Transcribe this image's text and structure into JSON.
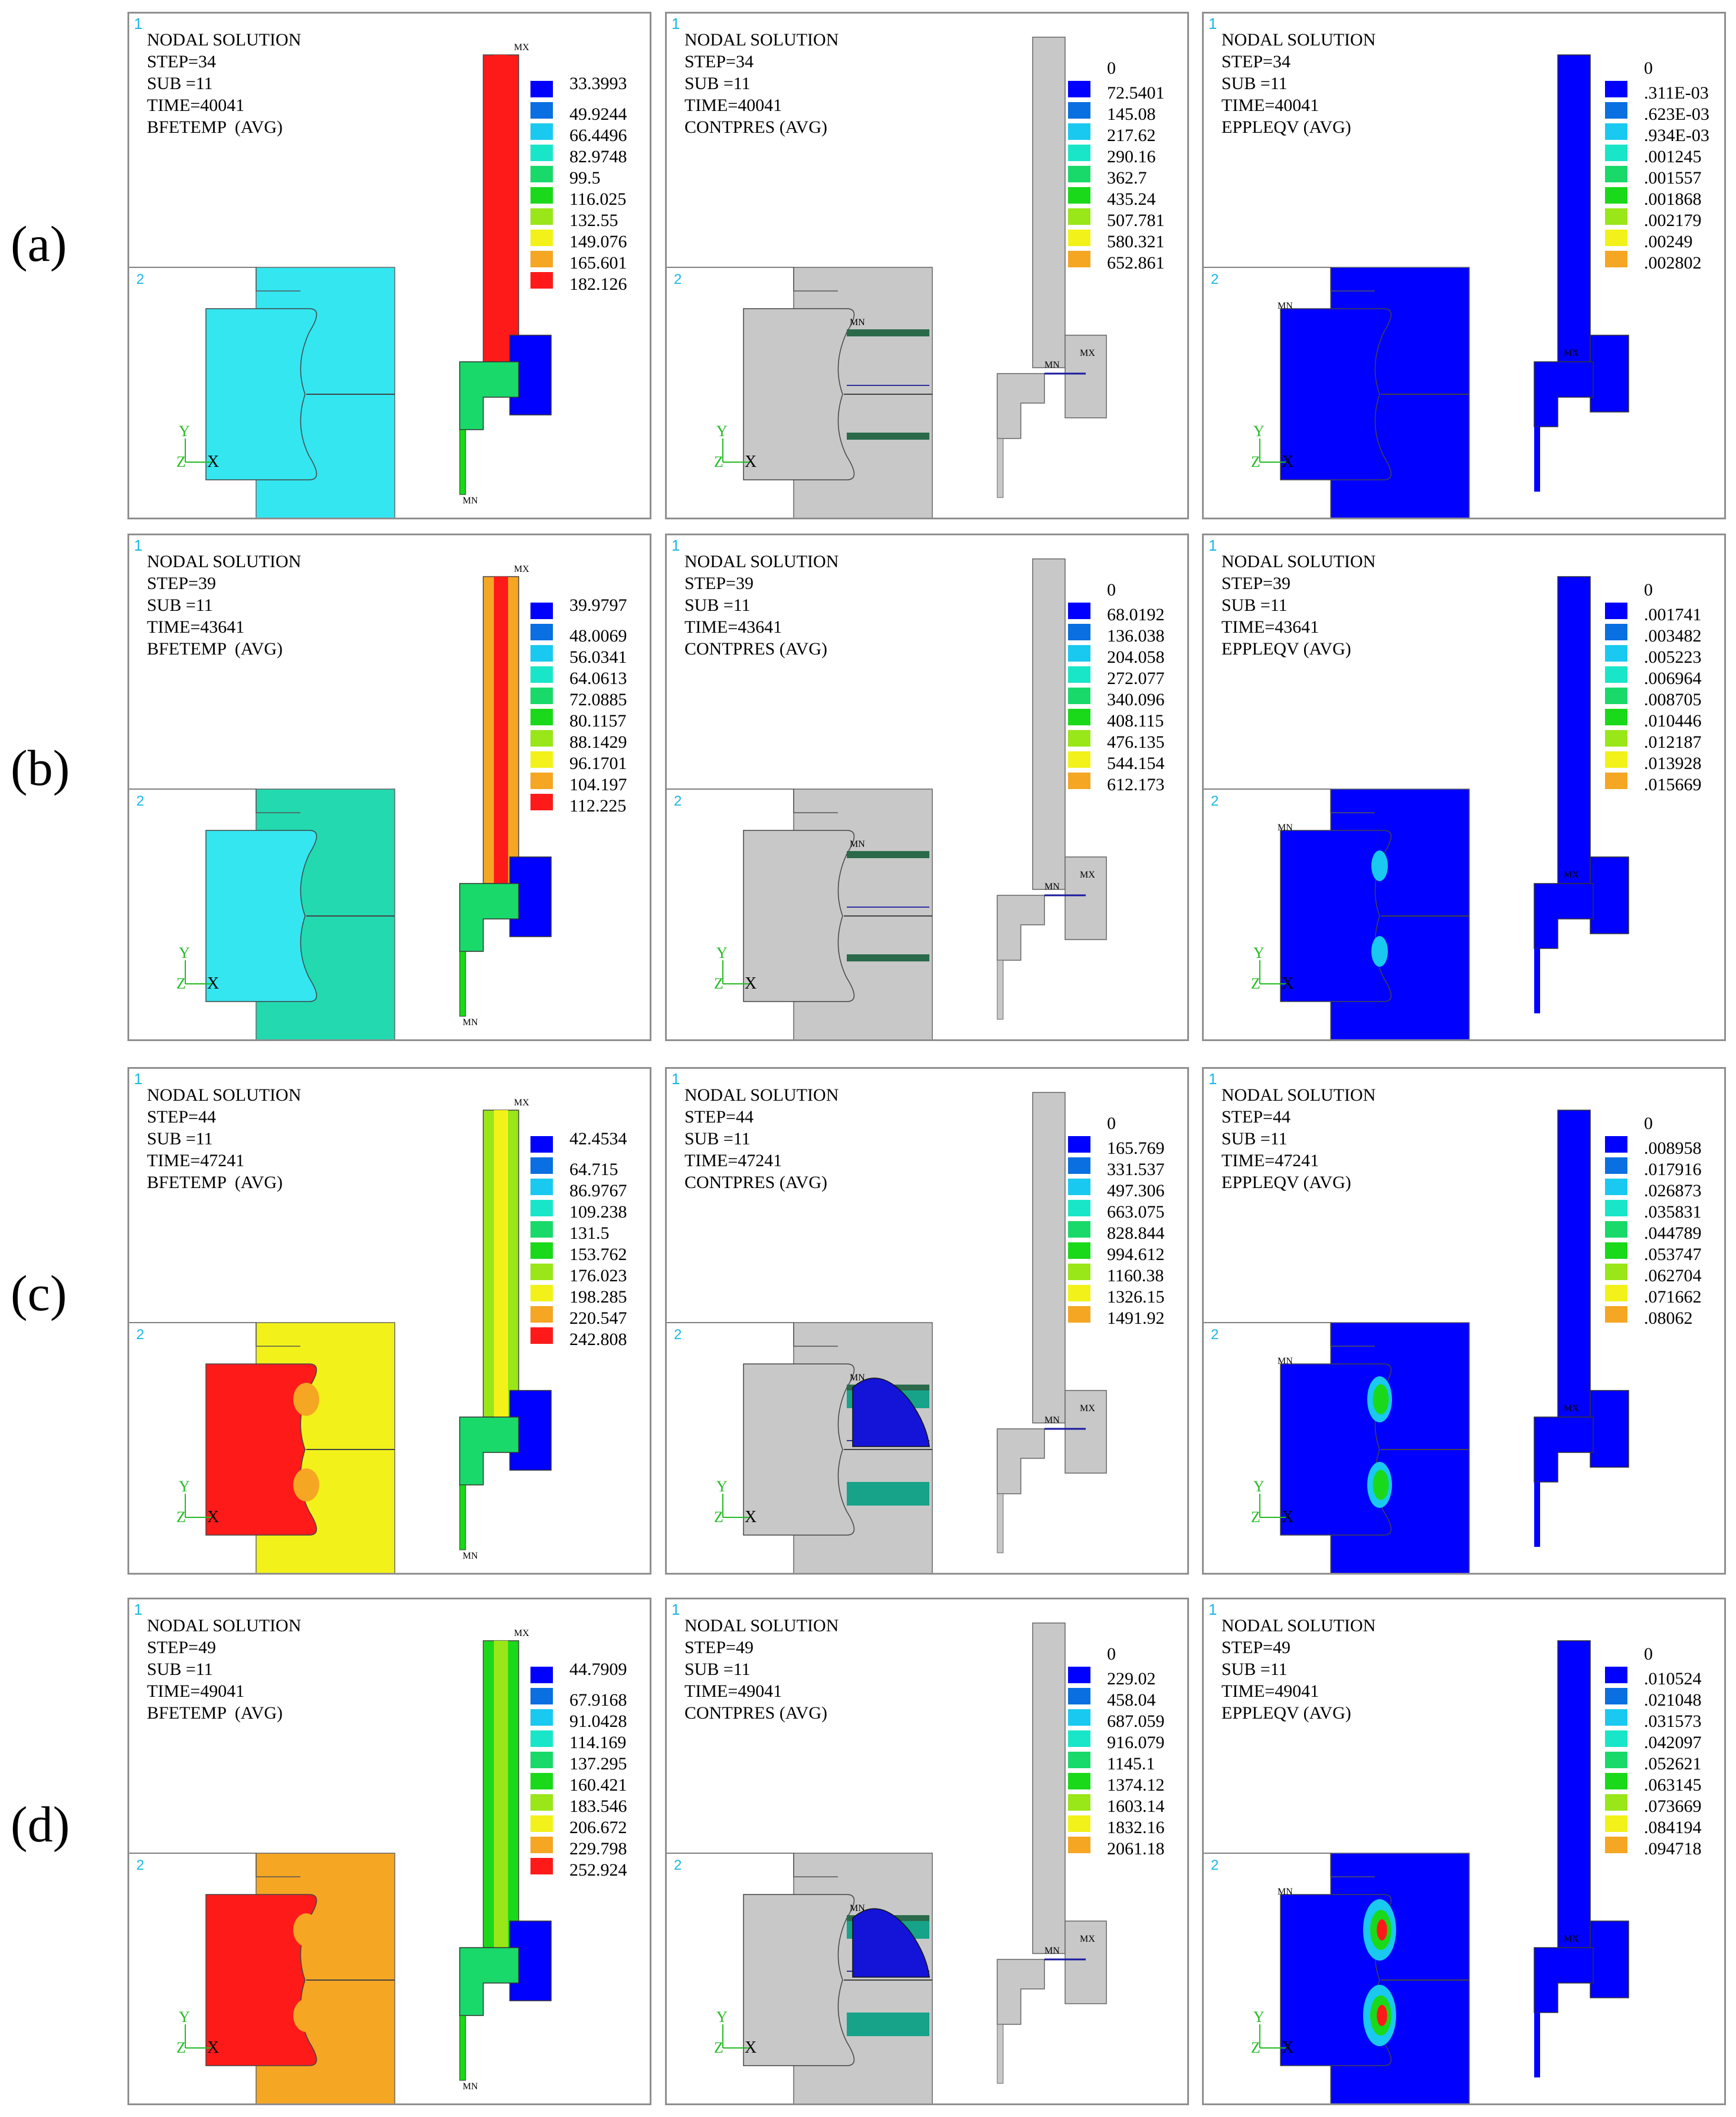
{
  "rows": [
    {
      "label": "(a)",
      "panels": [
        {
          "kind": "temp",
          "title": "NODAL SOLUTION",
          "step": "STEP=34",
          "sub": "SUB =11",
          "time": "TIME=40041",
          "quantity": "BFETEMP  (AVG)",
          "legend": [
            "33.3993",
            "49.9244",
            "66.4496",
            "82.9748",
            "99.5",
            "116.025",
            "132.55",
            "149.076",
            "165.601",
            "182.126"
          ],
          "zero": "",
          "body_color": "#33e6f0",
          "right_color": "#33e6f0",
          "stem_level": 9
        },
        {
          "kind": "cont",
          "title": "NODAL SOLUTION",
          "step": "STEP=34",
          "sub": "SUB =11",
          "time": "TIME=40041",
          "quantity": "CONTPRES (AVG)",
          "legend": [
            "72.5401",
            "145.08",
            "217.62",
            "290.16",
            "362.7",
            "435.24",
            "507.781",
            "580.321",
            "652.861"
          ],
          "zero": "0",
          "blob": 0
        },
        {
          "kind": "strain",
          "title": "NODAL SOLUTION",
          "step": "STEP=34",
          "sub": "SUB =11",
          "time": "TIME=40041",
          "quantity": "EPPLEQV (AVG)",
          "legend": [
            ".311E-03",
            ".623E-03",
            ".934E-03",
            ".001245",
            ".001557",
            ".001868",
            ".002179",
            ".00249",
            ".002802"
          ],
          "zero": "0",
          "hot": 0
        }
      ]
    },
    {
      "label": "(b)",
      "panels": [
        {
          "kind": "temp",
          "title": "NODAL SOLUTION",
          "step": "STEP=39",
          "sub": "SUB =11",
          "time": "TIME=43641",
          "quantity": "BFETEMP  (AVG)",
          "legend": [
            "39.9797",
            "48.0069",
            "56.0341",
            "64.0613",
            "72.0885",
            "80.1157",
            "88.1429",
            "96.1701",
            "104.197",
            "112.225"
          ],
          "zero": "",
          "body_color": "#33e6f0",
          "right_color": "#22d9b0",
          "stem_level": 8
        },
        {
          "kind": "cont",
          "title": "NODAL SOLUTION",
          "step": "STEP=39",
          "sub": "SUB =11",
          "time": "TIME=43641",
          "quantity": "CONTPRES (AVG)",
          "legend": [
            "68.0192",
            "136.038",
            "204.058",
            "272.077",
            "340.096",
            "408.115",
            "476.135",
            "544.154",
            "612.173"
          ],
          "zero": "0",
          "blob": 0
        },
        {
          "kind": "strain",
          "title": "NODAL SOLUTION",
          "step": "STEP=39",
          "sub": "SUB =11",
          "time": "TIME=43641",
          "quantity": "EPPLEQV (AVG)",
          "legend": [
            ".001741",
            ".003482",
            ".005223",
            ".006964",
            ".008705",
            ".010446",
            ".012187",
            ".013928",
            ".015669"
          ],
          "zero": "0",
          "hot": 1
        }
      ]
    },
    {
      "label": "(c)",
      "panels": [
        {
          "kind": "temp",
          "title": "NODAL SOLUTION",
          "step": "STEP=44",
          "sub": "SUB =11",
          "time": "TIME=47241",
          "quantity": "BFETEMP  (AVG)",
          "legend": [
            "42.4534",
            "64.715",
            "86.9767",
            "109.238",
            "131.5",
            "153.762",
            "176.023",
            "198.285",
            "220.547",
            "242.808"
          ],
          "zero": "",
          "body_color": "#ff1a1a",
          "right_color": "#f2f21a",
          "stem_level": 6
        },
        {
          "kind": "cont",
          "title": "NODAL SOLUTION",
          "step": "STEP=44",
          "sub": "SUB =11",
          "time": "TIME=47241",
          "quantity": "CONTPRES (AVG)",
          "legend": [
            "165.769",
            "331.537",
            "497.306",
            "663.075",
            "828.844",
            "994.612",
            "1160.38",
            "1326.15",
            "1491.92"
          ],
          "zero": "0",
          "blob": 1
        },
        {
          "kind": "strain",
          "title": "NODAL SOLUTION",
          "step": "STEP=44",
          "sub": "SUB =11",
          "time": "TIME=47241",
          "quantity": "EPPLEQV (AVG)",
          "legend": [
            ".008958",
            ".017916",
            ".026873",
            ".035831",
            ".044789",
            ".053747",
            ".062704",
            ".071662",
            ".08062"
          ],
          "zero": "0",
          "hot": 2
        }
      ]
    },
    {
      "label": "(d)",
      "panels": [
        {
          "kind": "temp",
          "title": "NODAL SOLUTION",
          "step": "STEP=49",
          "sub": "SUB =11",
          "time": "TIME=49041",
          "quantity": "BFETEMP  (AVG)",
          "legend": [
            "44.7909",
            "67.9168",
            "91.0428",
            "114.169",
            "137.295",
            "160.421",
            "183.546",
            "206.672",
            "229.798",
            "252.924"
          ],
          "zero": "",
          "body_color": "#ff1a1a",
          "right_color": "#f5a623",
          "stem_level": 5
        },
        {
          "kind": "cont",
          "title": "NODAL SOLUTION",
          "step": "STEP=49",
          "sub": "SUB =11",
          "time": "TIME=49041",
          "quantity": "CONTPRES (AVG)",
          "legend": [
            "229.02",
            "458.04",
            "687.059",
            "916.079",
            "1145.1",
            "1374.12",
            "1603.14",
            "1832.16",
            "2061.18"
          ],
          "zero": "0",
          "blob": 1
        },
        {
          "kind": "strain",
          "title": "NODAL SOLUTION",
          "step": "STEP=49",
          "sub": "SUB =11",
          "time": "TIME=49041",
          "quantity": "EPPLEQV (AVG)",
          "legend": [
            ".010524",
            ".021048",
            ".031573",
            ".042097",
            ".052621",
            ".063145",
            ".073669",
            ".084194",
            ".094718"
          ],
          "zero": "0",
          "hot": 3
        }
      ]
    }
  ],
  "legend_colors": [
    "#0000ff",
    "#0a6fe0",
    "#19c9f0",
    "#19e6c8",
    "#19d96a",
    "#1ad91a",
    "#99e619",
    "#f2f21a",
    "#f5a623",
    "#ff1a1a"
  ],
  "marks": {
    "mx": "MX",
    "mn": "MN",
    "axis_y": "Y",
    "axis_z": "Z",
    "axis_x": "X",
    "win1": "1",
    "win2": "2"
  }
}
